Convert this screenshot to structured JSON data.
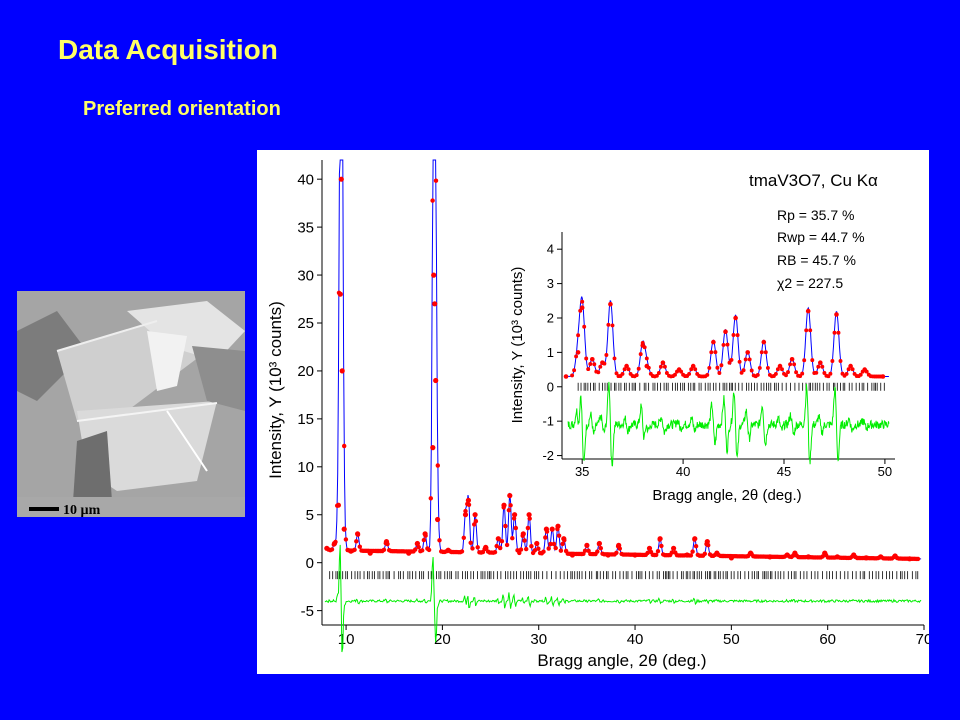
{
  "slide": {
    "title": "Data Acquisition",
    "subtitle": "Preferred orientation"
  },
  "micrograph": {
    "scale_bar_label": "10 µm"
  },
  "chart_data": [
    {
      "type": "scatter",
      "title": "",
      "xlabel": "Bragg angle, 2θ (deg.)",
      "ylabel": "Intensity, Y (10³ counts)",
      "xlim": [
        7.5,
        70
      ],
      "ylim": [
        -6.5,
        42
      ],
      "xticks": [
        10,
        20,
        30,
        40,
        50,
        60,
        70
      ],
      "yticks": [
        -5,
        0,
        5,
        10,
        15,
        20,
        25,
        30,
        35,
        40
      ],
      "grid": false,
      "legend": "none",
      "annotation": {
        "compound": "tmaV3O7, Cu Kα",
        "stats": [
          "Rp = 35.7 %",
          "Rwp = 44.7 %",
          "RB = 45.7 %",
          "χ2 = 227.5"
        ]
      },
      "observed_color": "#ff0000",
      "calculated_color": "#0000ff",
      "difference_color": "#00ee00",
      "series": [
        {
          "name": "",
          "x": [
            8,
            8.8,
            9.2,
            9.4,
            9.5,
            9.6,
            9.8,
            10.5,
            11.2,
            12.5,
            14.2,
            16.5,
            17.4,
            18.2,
            19.0,
            19.1,
            19.2,
            19.3,
            19.5,
            20.6,
            22.4,
            22.7,
            23.4,
            24.5,
            25.8,
            26.4,
            27.0,
            27.5,
            28.4,
            29.0,
            29.8,
            30.8,
            31.4,
            32.0,
            32.6,
            33.5,
            35.0,
            36.3,
            37.2,
            38.3,
            40.0,
            41.5,
            42.6,
            44.0,
            45.4,
            46.2,
            47.5,
            48.5,
            50.0,
            52.0,
            54.0,
            55.8,
            56.6,
            58.0,
            59.7,
            61.0,
            62.7,
            64.0,
            65.5,
            67.0,
            68.5
          ],
          "y": [
            1.5,
            2.0,
            6.0,
            28.0,
            40.0,
            20.0,
            3.5,
            1.2,
            3.0,
            1.0,
            2.2,
            1.0,
            2.0,
            3.0,
            12.0,
            30.0,
            27.0,
            19.0,
            4.5,
            1.3,
            5.0,
            6.5,
            5.0,
            1.6,
            2.5,
            6.0,
            7.0,
            5.0,
            3.0,
            5.0,
            2.0,
            3.5,
            3.5,
            3.8,
            2.5,
            0.8,
            1.8,
            2.0,
            0.8,
            1.8,
            0.8,
            1.5,
            2.5,
            1.5,
            0.8,
            2.5,
            2.2,
            1.0,
            0.5,
            1.0,
            0.6,
            0.8,
            1.0,
            0.6,
            1.0,
            0.6,
            0.8,
            0.5,
            0.6,
            0.7,
            0.4
          ]
        }
      ]
    },
    {
      "type": "scatter",
      "title": "",
      "xlabel": "Bragg angle, 2θ (deg.)",
      "ylabel": "Intensity, Y (10³ counts)",
      "xlim": [
        34,
        50.5
      ],
      "ylim": [
        -2.1,
        4.5
      ],
      "xticks": [
        35,
        40,
        45,
        50
      ],
      "yticks": [
        -2,
        -1,
        0,
        1,
        2,
        3,
        4
      ],
      "grid": false,
      "legend": "none",
      "series": [
        {
          "name": "",
          "x": [
            34.2,
            34.8,
            35.0,
            35.5,
            36.0,
            36.4,
            37.2,
            38.0,
            38.2,
            39.0,
            39.8,
            40.5,
            41.5,
            42.1,
            42.6,
            43.2,
            44.0,
            44.8,
            45.4,
            46.2,
            46.8,
            47.6,
            48.3,
            49.0,
            49.9
          ],
          "y": [
            0.3,
            1.0,
            2.3,
            0.8,
            0.7,
            2.4,
            0.6,
            1.2,
            0.6,
            0.7,
            0.5,
            0.6,
            1.3,
            1.6,
            2.0,
            1.0,
            1.3,
            0.6,
            0.8,
            2.2,
            0.7,
            2.1,
            0.6,
            0.5,
            0.3
          ]
        }
      ]
    }
  ]
}
